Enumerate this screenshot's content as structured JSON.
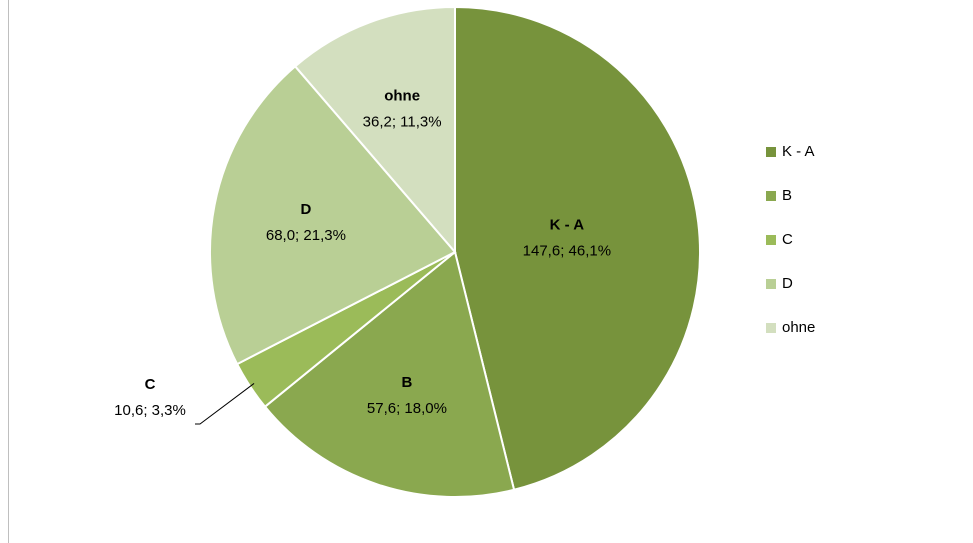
{
  "chart_data": {
    "type": "pie",
    "categories": [
      "K - A",
      "B",
      "C",
      "D",
      "ohne"
    ],
    "values": [
      147.6,
      57.6,
      10.6,
      68.0,
      36.2
    ],
    "value_labels": [
      "147,6; 46,1%",
      "57,6; 18,0%",
      "10,6; 3,3%",
      "68,0; 21,3%",
      "36,2; 11,3%"
    ],
    "colors": [
      "#77933c",
      "#8aa84f",
      "#9bbb59",
      "#b9cf95",
      "#d3dfbf"
    ],
    "legend": "right"
  }
}
